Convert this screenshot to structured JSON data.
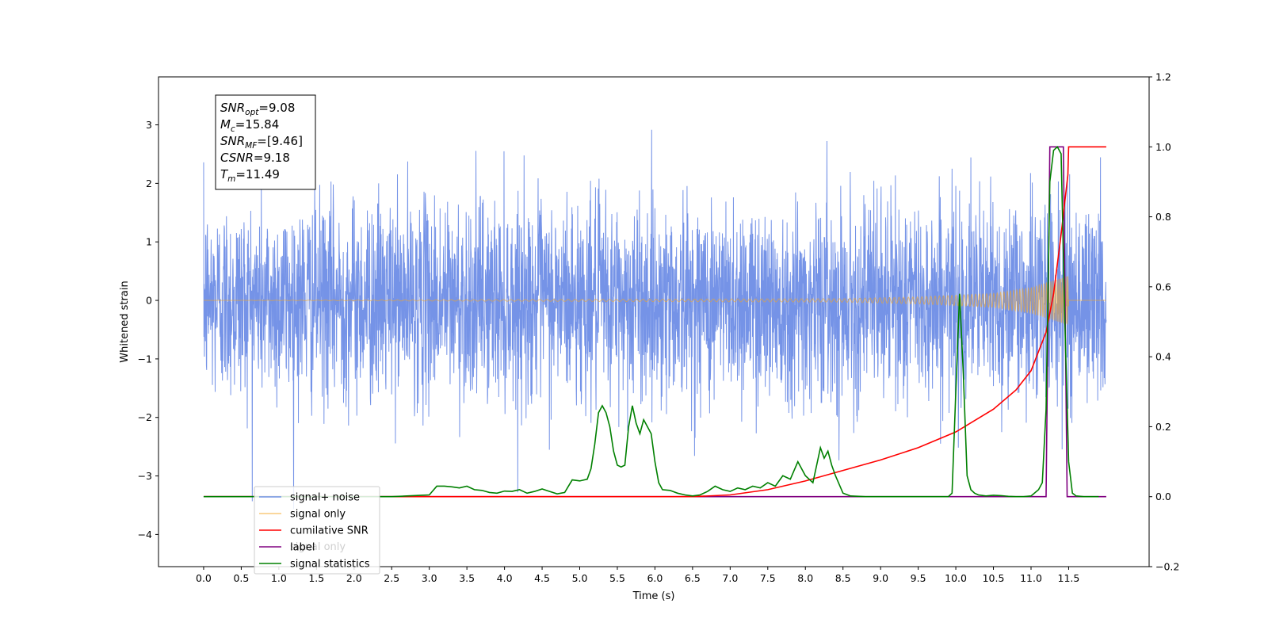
{
  "chart_data": {
    "type": "line",
    "xlabel": "Time (s)",
    "ylabel": "Whitened strain",
    "xlim": [
      -0.6,
      12.57
    ],
    "ylim": [
      -4.55,
      3.82
    ],
    "ylim_right": [
      -0.2,
      1.2
    ],
    "x_ticks": [
      "0.0",
      "0.5",
      "1.0",
      "1.5",
      "2.0",
      "2.5",
      "3.0",
      "3.5",
      "4.0",
      "4.5",
      "5.0",
      "5.5",
      "6.0",
      "6.5",
      "7.0",
      "7.5",
      "8.0",
      "8.5",
      "9.0",
      "9.5",
      "10.0",
      "10.5",
      "11.0",
      "11.5"
    ],
    "y_ticks_left": [
      "−4",
      "−3",
      "−2",
      "−1",
      "0",
      "1",
      "2",
      "3"
    ],
    "y_ticks_right": [
      "−0.2",
      "0.0",
      "0.2",
      "0.4",
      "0.6",
      "0.8",
      "1.0",
      "1.2"
    ],
    "grid": false,
    "legend_position": "lower-left",
    "legend": [
      "signal+ noise",
      "signal only",
      "cumilative SNR",
      "label",
      "signal statistics"
    ],
    "legend_ghost": [
      "signal only"
    ],
    "info_box": [
      {
        "main": "SNR",
        "sub": "opt",
        "rest": "=9.08"
      },
      {
        "main": "M",
        "sub": "c",
        "rest": "=15.84"
      },
      {
        "main": "SNR",
        "sub": "MF",
        "rest": "=[9.46]"
      },
      {
        "main": "CSNR",
        "sub": "",
        "rest": "=9.18"
      },
      {
        "main": "T",
        "sub": "m",
        "rest": "=11.49"
      }
    ],
    "colors": {
      "signal_noise": "#6e8de6",
      "signal_only": "#f5a623",
      "cumulative_snr": "#ff0000",
      "label": "#800080",
      "signal_statistics": "#008000"
    },
    "series": [
      {
        "name": "signal+ noise",
        "axis": "left",
        "x_range": [
          0.0,
          12.0
        ],
        "approx_std": 0.85,
        "approx_max": 3.22,
        "approx_min": -4.12
      },
      {
        "name": "signal only",
        "axis": "left",
        "chirp_envelope": {
          "x": [
            0.0,
            8.5,
            9.5,
            10.5,
            11.0,
            11.3,
            11.49,
            11.5
          ],
          "y": [
            0.0,
            0.03,
            0.06,
            0.12,
            0.22,
            0.34,
            0.42,
            0.0
          ]
        }
      },
      {
        "name": "cumilative SNR",
        "axis": "right",
        "x": [
          0.0,
          6.5,
          7.0,
          7.5,
          8.0,
          8.5,
          9.0,
          9.5,
          10.0,
          10.5,
          10.8,
          11.0,
          11.2,
          11.3,
          11.4,
          11.49,
          11.5,
          11.6,
          12.0
        ],
        "y": [
          0.0,
          0.0,
          0.005,
          0.02,
          0.045,
          0.075,
          0.105,
          0.14,
          0.185,
          0.25,
          0.305,
          0.36,
          0.47,
          0.58,
          0.75,
          0.92,
          1.0,
          1.0,
          1.0
        ]
      },
      {
        "name": "label",
        "axis": "right",
        "x": [
          0.0,
          11.2,
          11.25,
          11.43,
          11.48,
          12.0
        ],
        "y": [
          0.0,
          0.0,
          1.0,
          1.0,
          0.0,
          0.0
        ]
      },
      {
        "name": "signal statistics",
        "axis": "right",
        "x": [
          0.0,
          2.5,
          2.7,
          2.9,
          3.0,
          3.1,
          3.2,
          3.3,
          3.4,
          3.5,
          3.6,
          3.7,
          3.8,
          3.9,
          4.0,
          4.1,
          4.2,
          4.3,
          4.4,
          4.5,
          4.6,
          4.7,
          4.8,
          4.9,
          5.0,
          5.1,
          5.15,
          5.2,
          5.25,
          5.3,
          5.35,
          5.4,
          5.45,
          5.5,
          5.55,
          5.6,
          5.65,
          5.7,
          5.75,
          5.8,
          5.85,
          5.9,
          5.95,
          6.0,
          6.05,
          6.1,
          6.2,
          6.3,
          6.4,
          6.5,
          6.6,
          6.7,
          6.8,
          6.9,
          7.0,
          7.1,
          7.2,
          7.3,
          7.4,
          7.5,
          7.6,
          7.7,
          7.8,
          7.9,
          8.0,
          8.1,
          8.15,
          8.2,
          8.25,
          8.3,
          8.35,
          8.4,
          8.5,
          8.6,
          8.8,
          9.0,
          9.5,
          9.9,
          9.95,
          10.0,
          10.05,
          10.1,
          10.15,
          10.2,
          10.25,
          10.3,
          10.4,
          10.5,
          10.6,
          10.7,
          10.8,
          10.9,
          11.0,
          11.1,
          11.15,
          11.2,
          11.25,
          11.3,
          11.35,
          11.4,
          11.45,
          11.5,
          11.55,
          11.6,
          11.7,
          11.9
        ],
        "y": [
          0.0,
          0.0,
          0.002,
          0.004,
          0.005,
          0.03,
          0.03,
          0.028,
          0.025,
          0.03,
          0.02,
          0.018,
          0.012,
          0.01,
          0.016,
          0.015,
          0.02,
          0.01,
          0.015,
          0.022,
          0.015,
          0.008,
          0.012,
          0.048,
          0.045,
          0.05,
          0.08,
          0.15,
          0.24,
          0.26,
          0.24,
          0.2,
          0.13,
          0.09,
          0.085,
          0.09,
          0.2,
          0.26,
          0.21,
          0.18,
          0.22,
          0.2,
          0.18,
          0.1,
          0.04,
          0.02,
          0.018,
          0.01,
          0.005,
          0.002,
          0.005,
          0.015,
          0.03,
          0.02,
          0.015,
          0.025,
          0.02,
          0.03,
          0.025,
          0.04,
          0.03,
          0.06,
          0.05,
          0.1,
          0.06,
          0.04,
          0.09,
          0.14,
          0.11,
          0.13,
          0.09,
          0.06,
          0.01,
          0.002,
          0.0,
          0.0,
          0.0,
          0.0,
          0.01,
          0.3,
          0.58,
          0.35,
          0.06,
          0.02,
          0.01,
          0.005,
          0.002,
          0.004,
          0.003,
          0.001,
          0.0,
          0.0,
          0.002,
          0.02,
          0.04,
          0.25,
          0.9,
          0.99,
          1.0,
          0.98,
          0.5,
          0.1,
          0.01,
          0.002,
          0.0,
          0.0
        ]
      }
    ]
  }
}
